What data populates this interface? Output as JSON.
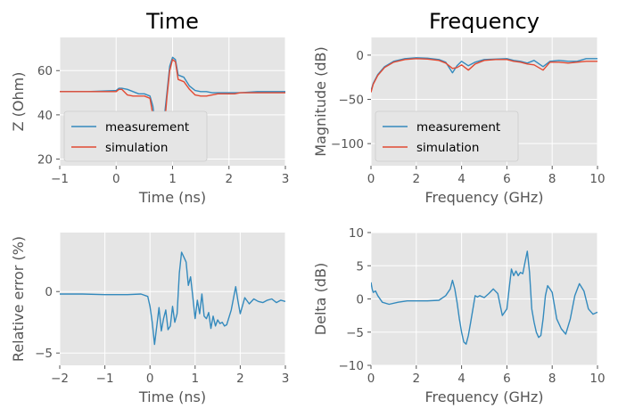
{
  "colors": {
    "measurement": "#348abd",
    "simulation": "#e24a33",
    "panel": "#e5e5e5",
    "grid": "#ffffff"
  },
  "chart_data": [
    {
      "id": "time",
      "type": "line",
      "title": "Time",
      "xlabel": "Time (ns)",
      "ylabel": "Z (Ohm)",
      "xlim": [
        -1,
        3
      ],
      "ylim": [
        17,
        75
      ],
      "xticks": [
        -1,
        0,
        1,
        2,
        3
      ],
      "yticks": [
        20,
        40,
        60
      ],
      "grid": true,
      "legend": "lower-left",
      "series": [
        {
          "name": "measurement",
          "color": "#348abd",
          "x": [
            -1,
            -0.5,
            0,
            0.05,
            0.1,
            0.2,
            0.3,
            0.4,
            0.5,
            0.6,
            0.65,
            0.7,
            0.8,
            0.85,
            0.9,
            0.95,
            1.0,
            1.05,
            1.1,
            1.2,
            1.3,
            1.4,
            1.5,
            1.6,
            1.7,
            1.8,
            1.9,
            2.0,
            2.1,
            2.2,
            2.5,
            3.0
          ],
          "y": [
            50.5,
            50.5,
            51,
            52,
            52,
            51.5,
            50.5,
            49.5,
            49.5,
            48.5,
            44,
            35,
            32,
            38,
            50,
            62,
            66,
            65,
            58,
            57,
            53,
            51,
            50.5,
            50.5,
            50,
            50,
            50,
            50,
            50,
            50,
            50.5,
            50.5
          ]
        },
        {
          "name": "simulation",
          "color": "#e24a33",
          "x": [
            -1,
            -0.5,
            0,
            0.05,
            0.1,
            0.2,
            0.3,
            0.4,
            0.5,
            0.6,
            0.65,
            0.7,
            0.8,
            0.85,
            0.9,
            0.95,
            1.0,
            1.05,
            1.1,
            1.2,
            1.3,
            1.4,
            1.5,
            1.6,
            1.7,
            1.8,
            1.9,
            2.0,
            2.1,
            2.2,
            2.5,
            3.0
          ],
          "y": [
            50.5,
            50.5,
            50.5,
            51.5,
            51.5,
            49,
            48.5,
            48.5,
            48.5,
            47.5,
            40,
            29,
            27,
            33,
            48,
            60,
            65,
            64,
            56,
            55,
            51.5,
            49,
            48.5,
            48.5,
            49,
            49.5,
            49.5,
            49.5,
            49.5,
            50,
            50,
            50
          ]
        }
      ]
    },
    {
      "id": "frequency",
      "type": "line",
      "title": "Frequency",
      "xlabel": "Frequency (GHz)",
      "ylabel": "Magnitude (dB)",
      "xlim": [
        0,
        10
      ],
      "ylim": [
        -125,
        20
      ],
      "xticks": [
        0,
        2,
        4,
        6,
        8,
        10
      ],
      "yticks": [
        0,
        -50,
        -100
      ],
      "grid": true,
      "legend": "lower-left",
      "series": [
        {
          "name": "measurement",
          "color": "#348abd",
          "x": [
            0,
            0.1,
            0.3,
            0.6,
            1.0,
            1.5,
            2.0,
            2.5,
            3.0,
            3.3,
            3.6,
            3.8,
            4.0,
            4.3,
            4.6,
            5.0,
            5.5,
            6.0,
            6.3,
            6.6,
            6.9,
            7.2,
            7.6,
            7.9,
            8.3,
            8.7,
            9.1,
            9.5,
            10.0
          ],
          "y": [
            -40,
            -32,
            -22,
            -13,
            -7,
            -4,
            -3,
            -3.5,
            -5,
            -8,
            -20,
            -12,
            -7,
            -12,
            -8,
            -5,
            -4.5,
            -4,
            -6,
            -7,
            -9,
            -6,
            -13,
            -7,
            -6,
            -7,
            -7,
            -4,
            -4
          ]
        },
        {
          "name": "simulation",
          "color": "#e24a33",
          "x": [
            0,
            0.1,
            0.3,
            0.6,
            1.0,
            1.5,
            2.0,
            2.5,
            3.0,
            3.3,
            3.6,
            3.8,
            4.0,
            4.3,
            4.6,
            5.0,
            5.5,
            6.0,
            6.3,
            6.6,
            6.9,
            7.2,
            7.6,
            7.9,
            8.3,
            8.7,
            9.1,
            9.5,
            10.0
          ],
          "y": [
            -42,
            -33,
            -23,
            -14,
            -8,
            -5,
            -4,
            -4.5,
            -6,
            -9,
            -15,
            -14,
            -11,
            -17,
            -10,
            -6,
            -5,
            -5,
            -7,
            -8,
            -10,
            -11,
            -17,
            -8,
            -8,
            -9,
            -8,
            -7,
            -7
          ]
        }
      ]
    },
    {
      "id": "time-error",
      "type": "line",
      "title": "",
      "xlabel": "Time (ns)",
      "ylabel": "Relative error (%)",
      "xlim": [
        -2,
        3
      ],
      "ylim": [
        -6,
        4.8
      ],
      "xticks": [
        -2,
        -1,
        0,
        1,
        2,
        3
      ],
      "yticks": [
        0,
        -5
      ],
      "grid": true,
      "legend": "none",
      "series": [
        {
          "name": "",
          "color": "#348abd",
          "x": [
            -2,
            -1.5,
            -1.0,
            -0.5,
            -0.2,
            -0.05,
            0.0,
            0.05,
            0.1,
            0.15,
            0.2,
            0.25,
            0.3,
            0.35,
            0.4,
            0.45,
            0.5,
            0.55,
            0.6,
            0.65,
            0.7,
            0.75,
            0.8,
            0.85,
            0.9,
            0.95,
            1.0,
            1.05,
            1.1,
            1.15,
            1.2,
            1.25,
            1.3,
            1.35,
            1.4,
            1.45,
            1.5,
            1.55,
            1.6,
            1.65,
            1.7,
            1.8,
            1.9,
            1.95,
            2.0,
            2.1,
            2.2,
            2.3,
            2.4,
            2.5,
            2.6,
            2.7,
            2.8,
            2.9,
            3.0
          ],
          "y": [
            -0.2,
            -0.2,
            -0.25,
            -0.25,
            -0.2,
            -0.4,
            -1.2,
            -2.5,
            -4.3,
            -2.8,
            -1.3,
            -3.2,
            -2.2,
            -1.5,
            -3.1,
            -2.8,
            -1.2,
            -2.5,
            -1.8,
            1.5,
            3.2,
            2.8,
            2.4,
            0.5,
            1.2,
            -0.5,
            -2.2,
            -0.7,
            -1.8,
            -0.2,
            -2.0,
            -2.2,
            -1.7,
            -3.0,
            -2.0,
            -2.8,
            -2.3,
            -2.6,
            -2.5,
            -2.8,
            -2.7,
            -1.5,
            0.4,
            -0.8,
            -1.8,
            -0.5,
            -1.0,
            -0.6,
            -0.8,
            -0.9,
            -0.7,
            -0.6,
            -0.9,
            -0.7,
            -0.8
          ]
        }
      ]
    },
    {
      "id": "frequency-delta",
      "type": "line",
      "title": "",
      "xlabel": "Frequency (GHz)",
      "ylabel": "Delta (dB)",
      "xlim": [
        0,
        10
      ],
      "ylim": [
        -10,
        10
      ],
      "xticks": [
        0,
        2,
        4,
        6,
        8,
        10
      ],
      "yticks": [
        10,
        5,
        0,
        -5,
        -10
      ],
      "grid": true,
      "legend": "none",
      "series": [
        {
          "name": "",
          "color": "#348abd",
          "x": [
            0,
            0.05,
            0.1,
            0.2,
            0.3,
            0.5,
            0.8,
            1.2,
            1.6,
            2.0,
            2.5,
            3.0,
            3.3,
            3.5,
            3.6,
            3.7,
            3.8,
            3.9,
            4.0,
            4.1,
            4.2,
            4.3,
            4.4,
            4.5,
            4.6,
            4.7,
            4.8,
            5.0,
            5.2,
            5.4,
            5.6,
            5.8,
            6.0,
            6.1,
            6.2,
            6.3,
            6.4,
            6.5,
            6.6,
            6.7,
            6.8,
            6.9,
            7.0,
            7.1,
            7.2,
            7.3,
            7.4,
            7.5,
            7.6,
            7.7,
            7.8,
            7.9,
            8.0,
            8.2,
            8.4,
            8.6,
            8.8,
            9.0,
            9.2,
            9.4,
            9.6,
            9.8,
            10.0
          ],
          "y": [
            2.5,
            1.5,
            1.0,
            1.2,
            0.5,
            -0.5,
            -0.8,
            -0.5,
            -0.3,
            -0.3,
            -0.3,
            -0.2,
            0.5,
            1.5,
            2.8,
            1.5,
            -0.5,
            -3.0,
            -5.0,
            -6.5,
            -6.8,
            -5.5,
            -3.5,
            -1.5,
            0.5,
            0.3,
            0.5,
            0.2,
            0.8,
            1.5,
            0.8,
            -2.5,
            -1.5,
            1.5,
            4.5,
            3.5,
            4.2,
            3.5,
            4.0,
            3.8,
            5.5,
            7.2,
            4.0,
            -1.5,
            -3.5,
            -5.0,
            -5.8,
            -5.5,
            -3.0,
            0.5,
            2.0,
            1.5,
            1.0,
            -3.0,
            -4.5,
            -5.3,
            -3.0,
            0.5,
            2.3,
            1.2,
            -1.5,
            -2.3,
            -2.0
          ]
        }
      ]
    }
  ]
}
